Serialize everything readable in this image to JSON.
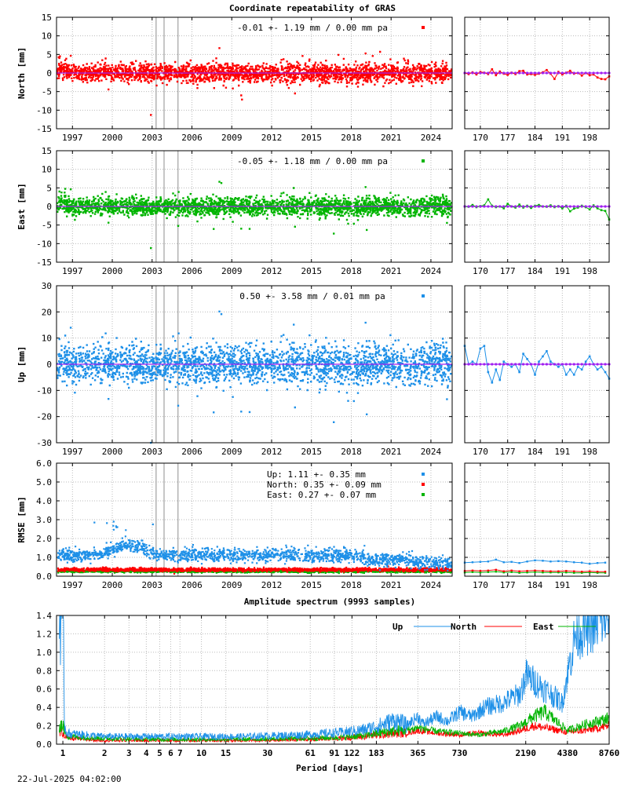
{
  "title": "Coordinate repeatability of GRAS",
  "timestamp": "22-Jul-2025 04:02:00",
  "colors": {
    "up": "#1e90e8",
    "north": "#ff0000",
    "east": "#00b400",
    "zero_line": "#a020f0",
    "event_line": "#a0a0a0",
    "grid": "#bbbbbb"
  },
  "time_axis": {
    "tick_labels": [
      "1997",
      "2000",
      "2003",
      "2006",
      "2009",
      "2012",
      "2015",
      "2018",
      "2021",
      "2024"
    ],
    "xlim": [
      1995.8,
      2025.6
    ]
  },
  "recent_axis": {
    "tick_labels": [
      "170",
      "177",
      "184",
      "191",
      "198"
    ],
    "xlim": [
      166,
      203
    ]
  },
  "event_lines_years": [
    2003.3,
    2003.9,
    2004.95
  ],
  "chart_data": [
    {
      "id": "north",
      "type": "scatter",
      "ylabel": "North [mm]",
      "ylim": [
        -15,
        15
      ],
      "yticks": [
        "15",
        "10",
        "5",
        "0",
        "-5",
        "-10",
        "-15"
      ],
      "annotation": "-0.01 +- 1.19 mm /  0.00 mm pa",
      "spread_mm": 1.19,
      "recent_days": [
        166,
        167,
        168,
        169,
        170,
        171,
        172,
        173,
        174,
        175,
        176,
        177,
        178,
        179,
        180,
        181,
        182,
        183,
        184,
        185,
        186,
        187,
        188,
        189,
        190,
        191,
        192,
        193,
        194,
        195,
        196,
        197,
        198,
        199,
        200,
        201,
        202,
        203
      ],
      "recent_values": [
        0.0,
        -0.3,
        0.2,
        -0.4,
        0.3,
        0.1,
        -0.3,
        1.0,
        -0.6,
        0.4,
        -0.2,
        -0.5,
        0.1,
        -0.3,
        0.5,
        0.6,
        -0.4,
        -0.3,
        -0.5,
        -0.2,
        0.2,
        0.8,
        -0.2,
        -1.6,
        0.3,
        -0.4,
        0.1,
        0.6,
        -0.2,
        0.0,
        -0.7,
        0.0,
        -0.6,
        -0.4,
        -1.2,
        -1.6,
        -1.7,
        -0.9
      ]
    },
    {
      "id": "east",
      "type": "scatter",
      "ylabel": "East [mm]",
      "ylim": [
        -15,
        15
      ],
      "yticks": [
        "15",
        "10",
        "5",
        "0",
        "-5",
        "-10",
        "-15"
      ],
      "annotation": "-0.05 +- 1.18 mm /  0.00 mm pa",
      "spread_mm": 1.18,
      "recent_days": [
        166,
        167,
        168,
        169,
        170,
        171,
        172,
        173,
        174,
        175,
        176,
        177,
        178,
        179,
        180,
        181,
        182,
        183,
        184,
        185,
        186,
        187,
        188,
        189,
        190,
        191,
        192,
        193,
        194,
        195,
        196,
        197,
        198,
        199,
        200,
        201,
        202,
        203
      ],
      "recent_values": [
        0.0,
        -0.1,
        0.4,
        -0.2,
        0.1,
        0.3,
        1.9,
        0.2,
        -0.2,
        0.0,
        -0.5,
        0.7,
        0.0,
        -0.3,
        0.5,
        -0.3,
        0.2,
        -0.4,
        0.2,
        0.4,
        0.0,
        -0.1,
        0.3,
        -0.2,
        0.1,
        -0.5,
        0.2,
        -1.3,
        -0.6,
        -0.3,
        0.2,
        -0.2,
        -0.8,
        0.3,
        -0.5,
        -1.0,
        -1.2,
        -3.5
      ]
    },
    {
      "id": "up",
      "type": "scatter",
      "ylabel": "Up [mm]",
      "ylim": [
        -30,
        30
      ],
      "yticks": [
        "30",
        "20",
        "10",
        "0",
        "-10",
        "-20",
        "-30"
      ],
      "annotation": "0.50 +- 3.58 mm /  0.01 mm pa",
      "spread_mm": 3.58,
      "recent_days": [
        166,
        167,
        168,
        169,
        170,
        171,
        172,
        173,
        174,
        175,
        176,
        177,
        178,
        179,
        180,
        181,
        182,
        183,
        184,
        185,
        186,
        187,
        188,
        189,
        190,
        191,
        192,
        193,
        194,
        195,
        196,
        197,
        198,
        199,
        200,
        201,
        202,
        203
      ],
      "recent_values": [
        7.0,
        0.0,
        1.0,
        0.0,
        6.0,
        7.0,
        -3.0,
        -7.0,
        -2.0,
        -6.0,
        1.0,
        0.0,
        -1.0,
        0.0,
        -3.0,
        4.0,
        2.0,
        0.0,
        -4.0,
        1.0,
        3.0,
        5.0,
        1.0,
        0.0,
        -1.0,
        0.0,
        -4.0,
        -2.0,
        -4.0,
        -1.0,
        -2.0,
        1.0,
        3.0,
        0.0,
        -2.0,
        -1.0,
        -3.0,
        -5.5
      ]
    },
    {
      "id": "rmse",
      "type": "scatter",
      "ylabel": "RMSE [mm]",
      "ylim": [
        0,
        6
      ],
      "yticks": [
        "6.0",
        "5.0",
        "4.0",
        "3.0",
        "2.0",
        "1.0",
        "0.0"
      ],
      "legend": [
        {
          "key": "up",
          "label": "Up:      1.11 +- 0.35 mm"
        },
        {
          "key": "north",
          "label": "North:  0.35 +- 0.09 mm"
        },
        {
          "key": "east",
          "label": "East:   0.27 +- 0.07 mm"
        }
      ],
      "series_means": {
        "up": 1.11,
        "north": 0.35,
        "east": 0.27
      },
      "series_spreads": {
        "up": 0.35,
        "north": 0.09,
        "east": 0.07
      },
      "recent_days": [
        166,
        168,
        170,
        172,
        174,
        176,
        178,
        180,
        182,
        184,
        186,
        188,
        190,
        192,
        194,
        196,
        198,
        200,
        202
      ],
      "recent_up": [
        0.72,
        0.74,
        0.76,
        0.78,
        0.88,
        0.74,
        0.76,
        0.7,
        0.78,
        0.84,
        0.82,
        0.78,
        0.8,
        0.78,
        0.74,
        0.72,
        0.66,
        0.7,
        0.72
      ],
      "recent_north": [
        0.28,
        0.3,
        0.28,
        0.3,
        0.34,
        0.26,
        0.3,
        0.26,
        0.28,
        0.3,
        0.28,
        0.26,
        0.26,
        0.28,
        0.26,
        0.24,
        0.26,
        0.24,
        0.24
      ],
      "recent_east": [
        0.2,
        0.22,
        0.2,
        0.22,
        0.24,
        0.2,
        0.22,
        0.18,
        0.2,
        0.22,
        0.2,
        0.2,
        0.2,
        0.2,
        0.18,
        0.18,
        0.2,
        0.18,
        0.18
      ]
    },
    {
      "id": "spectrum",
      "type": "line",
      "title": "Amplitude spectrum (9993 samples)",
      "xlabel": "Period [days]",
      "xscale": "log",
      "xlim": [
        0.9,
        8760
      ],
      "ylim": [
        0,
        1.4
      ],
      "yticks": [
        "1.4",
        "1.2",
        "1.0",
        "0.8",
        "0.6",
        "0.4",
        "0.2",
        "0.0"
      ],
      "xtick_values": [
        1,
        2,
        3,
        4,
        5,
        6,
        7,
        10,
        15,
        30,
        61,
        91,
        122,
        183,
        365,
        730,
        2190,
        4380,
        8760
      ],
      "xtick_labels": [
        "1",
        "2",
        "3",
        "4",
        "5",
        "6",
        "7",
        "10",
        "15",
        "30",
        "61",
        "91",
        "122",
        "183",
        "365",
        "730",
        "2190",
        "4380",
        "8760"
      ],
      "legend": [
        {
          "key": "up",
          "label": "Up"
        },
        {
          "key": "north",
          "label": "North"
        },
        {
          "key": "east",
          "label": "East"
        }
      ],
      "series": [
        {
          "name": "Up",
          "key": "up",
          "periods": [
            1.0,
            1.03,
            1.05,
            1.1,
            2,
            5,
            20,
            60,
            100,
            150,
            200,
            250,
            300,
            365,
            400,
            500,
            600,
            730,
            900,
            1100,
            1500,
            2000,
            2200,
            3000,
            4000,
            5000,
            8760
          ],
          "values": [
            1.4,
            0.2,
            0.14,
            0.11,
            0.08,
            0.08,
            0.08,
            0.1,
            0.12,
            0.15,
            0.2,
            0.25,
            0.2,
            0.3,
            0.22,
            0.3,
            0.25,
            0.35,
            0.3,
            0.4,
            0.45,
            0.55,
            0.75,
            0.6,
            0.45,
            1.2,
            1.4
          ]
        },
        {
          "name": "North",
          "key": "north",
          "periods": [
            1.0,
            1.05,
            1.1,
            2,
            5,
            20,
            60,
            100,
            150,
            200,
            300,
            365,
            500,
            730,
            1000,
            1500,
            2000,
            2500,
            3000,
            4380,
            6000,
            8760
          ],
          "values": [
            0.12,
            0.08,
            0.06,
            0.04,
            0.04,
            0.04,
            0.05,
            0.06,
            0.08,
            0.1,
            0.12,
            0.15,
            0.12,
            0.1,
            0.12,
            0.1,
            0.15,
            0.2,
            0.18,
            0.13,
            0.15,
            0.2
          ]
        },
        {
          "name": "East",
          "key": "east",
          "periods": [
            1.0,
            1.05,
            1.1,
            2,
            5,
            20,
            60,
            100,
            150,
            200,
            300,
            365,
            500,
            730,
            1000,
            1500,
            2000,
            2500,
            3000,
            4380,
            6000,
            8760
          ],
          "values": [
            0.2,
            0.1,
            0.08,
            0.06,
            0.05,
            0.05,
            0.06,
            0.07,
            0.09,
            0.12,
            0.15,
            0.18,
            0.14,
            0.12,
            0.1,
            0.14,
            0.2,
            0.3,
            0.35,
            0.15,
            0.22,
            0.28
          ]
        }
      ]
    }
  ]
}
